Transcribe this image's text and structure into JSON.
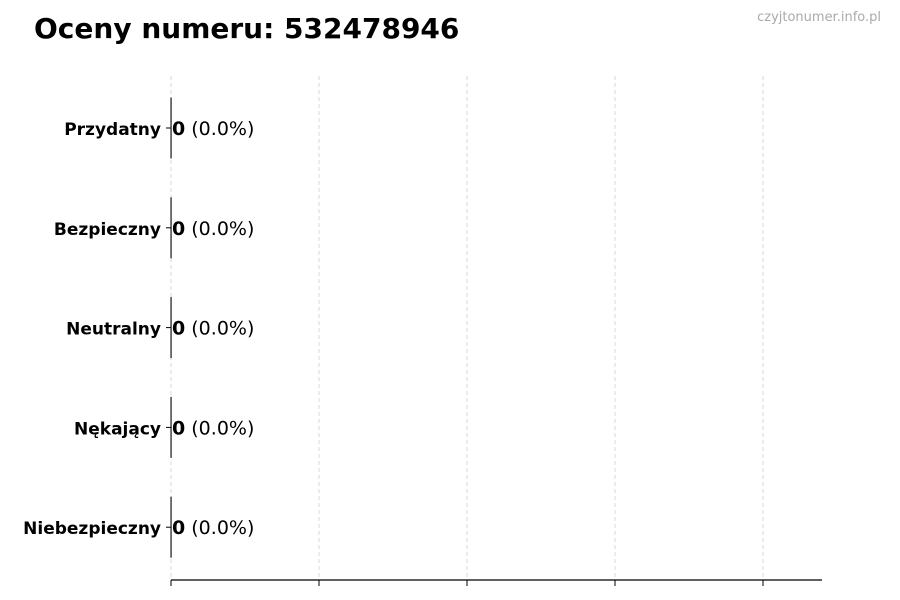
{
  "title": "Oceny numeru: 532478946",
  "watermark": "czyjtonumer.info.pl",
  "chart_data": {
    "type": "bar",
    "orientation": "horizontal",
    "title": "Oceny numeru: 532478946",
    "categories": [
      "Przydatny",
      "Bezpieczny",
      "Neutralny",
      "Nękający",
      "Niebezpieczny"
    ],
    "values": [
      0,
      0,
      0,
      0,
      0
    ],
    "labels": [
      {
        "count": "0",
        "pct": "(0.0%)"
      },
      {
        "count": "0",
        "pct": "(0.0%)"
      },
      {
        "count": "0",
        "pct": "(0.0%)"
      },
      {
        "count": "0",
        "pct": "(0.0%)"
      },
      {
        "count": "0",
        "pct": "(0.0%)"
      }
    ],
    "xlabel": "",
    "ylabel": "",
    "x_tick_labels_shown": false,
    "grid": "x, dashed",
    "colors": {
      "bar_edge": "#000000",
      "grid": "#d9d9d9",
      "watermark": "#aaaaaa"
    }
  }
}
